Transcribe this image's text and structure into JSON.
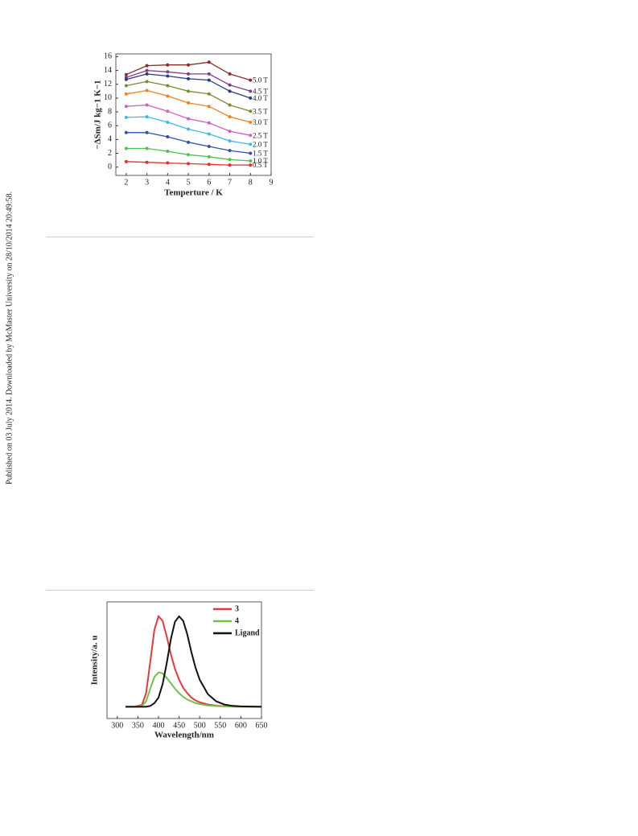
{
  "side_note": "Published on 03 July 2014. Downloaded by McMaster University on 28/10/2014 20:49:58.",
  "chart_data": [
    {
      "type": "line",
      "xlabel": "Temperture / K",
      "ylabel": "−ΔSm/J kg−1 K−1",
      "x": [
        2,
        3,
        4,
        5,
        6,
        7,
        8
      ],
      "xlim": [
        1.5,
        9
      ],
      "xticks": [
        2,
        3,
        4,
        5,
        6,
        7,
        8,
        9
      ],
      "ylim": [
        -1.2,
        16.4
      ],
      "yticks": [
        0,
        2,
        4,
        6,
        8,
        10,
        12,
        14,
        16
      ],
      "series": [
        {
          "name": "5.0 T",
          "color": "#8b2b2b",
          "values": [
            13.4,
            14.7,
            14.8,
            14.8,
            15.2,
            13.5,
            12.6
          ]
        },
        {
          "name": "4.5 T",
          "color": "#7b3f8c",
          "values": [
            13.0,
            14.0,
            13.8,
            13.5,
            13.5,
            11.9,
            11.0
          ]
        },
        {
          "name": "4.0 T",
          "color": "#2a3a80",
          "values": [
            12.7,
            13.5,
            13.2,
            12.8,
            12.6,
            11.0,
            10.0
          ]
        },
        {
          "name": "3.5 T",
          "color": "#7a8a30",
          "values": [
            11.8,
            12.4,
            11.8,
            11.0,
            10.6,
            9.0,
            8.1
          ]
        },
        {
          "name": "3.0 T",
          "color": "#f08020",
          "values": [
            10.6,
            11.1,
            10.3,
            9.3,
            8.8,
            7.3,
            6.5
          ]
        },
        {
          "name": "2.5 T",
          "color": "#d060c0",
          "values": [
            8.8,
            9.0,
            8.1,
            7.0,
            6.4,
            5.2,
            4.6
          ]
        },
        {
          "name": "2.0 T",
          "color": "#40b8e0",
          "values": [
            7.2,
            7.3,
            6.5,
            5.5,
            4.8,
            3.8,
            3.3
          ]
        },
        {
          "name": "1.5 T",
          "color": "#3050b0",
          "values": [
            5.0,
            5.0,
            4.4,
            3.6,
            3.0,
            2.4,
            2.0
          ]
        },
        {
          "name": "1.0 T",
          "color": "#50c050",
          "values": [
            2.7,
            2.7,
            2.3,
            1.8,
            1.5,
            1.1,
            0.9
          ]
        },
        {
          "name": "0.5 T",
          "color": "#e03030",
          "values": [
            0.8,
            0.7,
            0.6,
            0.5,
            0.4,
            0.3,
            0.3
          ]
        }
      ]
    },
    {
      "type": "line",
      "xlabel": "Wavelength/nm",
      "ylabel": "Intensity/a. u",
      "x": [
        320,
        340,
        360,
        370,
        380,
        390,
        400,
        410,
        420,
        430,
        440,
        450,
        460,
        470,
        480,
        490,
        500,
        520,
        540,
        560,
        580,
        600,
        650
      ],
      "xlim": [
        275,
        650
      ],
      "xticks": [
        300,
        350,
        400,
        450,
        500,
        550,
        600,
        650
      ],
      "ylim": [
        -0.13,
        1.16
      ],
      "series": [
        {
          "name": "3",
          "color": "#e8383a",
          "values": [
            0,
            0,
            0.02,
            0.15,
            0.5,
            0.85,
            1.0,
            0.95,
            0.78,
            0.58,
            0.42,
            0.3,
            0.21,
            0.15,
            0.1,
            0.07,
            0.05,
            0.025,
            0.012,
            0.006,
            0.003,
            0.001,
            0
          ]
        },
        {
          "name": "4",
          "color": "#6cc44a",
          "values": [
            0,
            0,
            0.01,
            0.06,
            0.2,
            0.33,
            0.38,
            0.37,
            0.32,
            0.26,
            0.2,
            0.15,
            0.11,
            0.08,
            0.06,
            0.04,
            0.03,
            0.015,
            0.008,
            0.004,
            0.002,
            0.001,
            0
          ]
        },
        {
          "name": "Ligand",
          "color": "#111111",
          "values": [
            0,
            0,
            0,
            0,
            0.01,
            0.04,
            0.1,
            0.25,
            0.48,
            0.75,
            0.94,
            1.0,
            0.95,
            0.8,
            0.6,
            0.43,
            0.3,
            0.14,
            0.06,
            0.025,
            0.01,
            0.004,
            0
          ]
        }
      ]
    }
  ]
}
